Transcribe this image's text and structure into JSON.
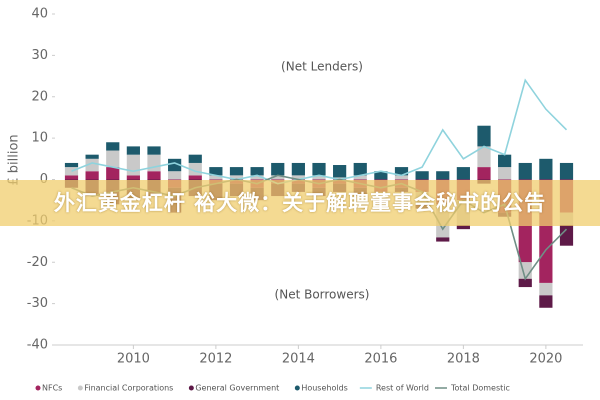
{
  "chart_data": {
    "type": "bar",
    "y_label": "£ billion",
    "annotations": [
      "(Net Lenders)",
      "(Net Borrowers)"
    ],
    "x": [
      2008.5,
      2009,
      2009.5,
      2010,
      2010.5,
      2011,
      2011.5,
      2012,
      2012.5,
      2013,
      2013.5,
      2014,
      2014.5,
      2015,
      2015.5,
      2016,
      2016.5,
      2017,
      2017.5,
      2018,
      2018.5,
      2019,
      2019.5,
      2020,
      2020.5
    ],
    "xlim": [
      2008.1,
      2020.9
    ],
    "xticks": [
      2010,
      2012,
      2014,
      2016,
      2018,
      2020
    ],
    "ylim": [
      -40,
      40
    ],
    "yticks": [
      -40,
      -30,
      -20,
      -10,
      0,
      10,
      20,
      30,
      40
    ],
    "series": [
      {
        "name": "NFCs",
        "mark": "bar",
        "color": "#a3245f",
        "values": [
          1,
          2,
          3,
          1,
          2,
          -2,
          1,
          -1,
          -1,
          -2,
          -1,
          -1,
          -2,
          -1,
          -2,
          -3,
          -2,
          -3,
          -6,
          -5,
          3,
          -8,
          -20,
          -25,
          -8
        ]
      },
      {
        "name": "Financial Corporations",
        "mark": "bar",
        "color": "#c9c9c9",
        "values": [
          2,
          3,
          4,
          5,
          4,
          2,
          3,
          1,
          1,
          1,
          1,
          1,
          1,
          0.5,
          1,
          -2,
          1,
          -3,
          -8,
          -6,
          5,
          3,
          -4,
          -3,
          -3
        ]
      },
      {
        "name": "General Government",
        "mark": "bar",
        "color": "#5e1a48",
        "values": [
          -2,
          -4,
          -6,
          -5,
          -4,
          -6,
          -4,
          -4,
          -3,
          -3,
          -3,
          -2,
          -2,
          -2,
          -2,
          -1,
          -1,
          -1,
          -1,
          -1,
          -1,
          -1,
          -2,
          -3,
          -5
        ]
      },
      {
        "name": "Households",
        "mark": "bar",
        "color": "#1d5a6c",
        "values": [
          1,
          1,
          2,
          2,
          2,
          3,
          2,
          2,
          2,
          2,
          3,
          3,
          3,
          3,
          3,
          2,
          2,
          2,
          2,
          3,
          5,
          3,
          4,
          5,
          4
        ]
      },
      {
        "name": "Rest of World",
        "mark": "line",
        "color": "#8fd3dd",
        "values": [
          2,
          4,
          3,
          2,
          3,
          4,
          2,
          1,
          0,
          1,
          -1,
          0,
          1,
          0,
          1,
          2,
          1,
          3,
          12,
          5,
          8,
          6,
          24,
          17,
          12
        ]
      },
      {
        "name": "Total Domestic",
        "mark": "line",
        "color": "#6f8f86",
        "values": [
          -2,
          -4,
          -3,
          -2,
          -3,
          -4,
          -2,
          -1,
          0,
          -1,
          1,
          0,
          -1,
          0,
          -1,
          -2,
          -1,
          -3,
          -12,
          -5,
          -8,
          -6,
          -24,
          -17,
          -12
        ]
      }
    ]
  },
  "overlay_text": "外汇黄金杠杆 裕大微：关于解聘董事会秘书的公告"
}
